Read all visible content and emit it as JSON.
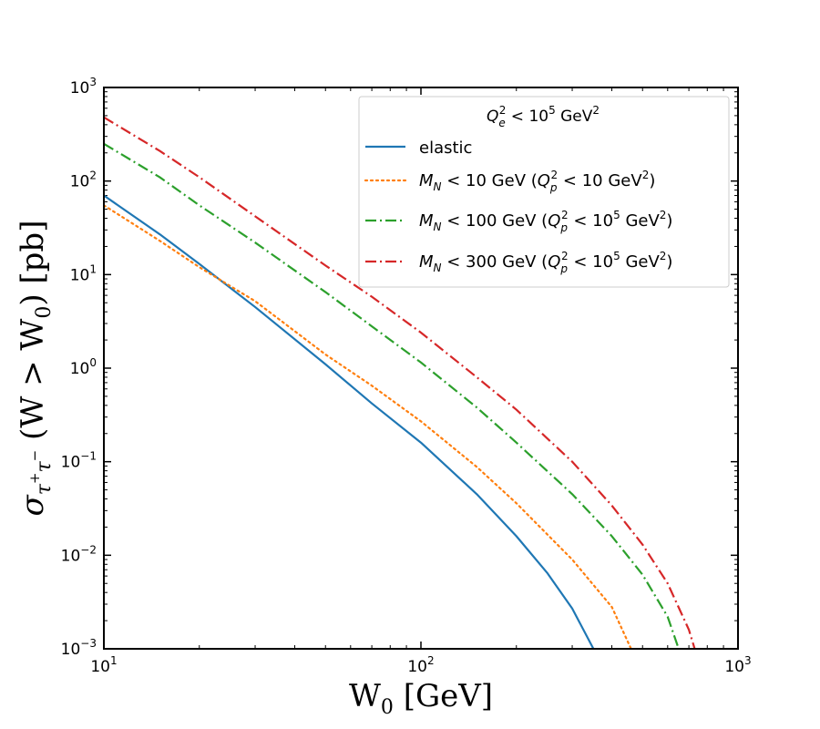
{
  "chart_data": {
    "type": "line",
    "xscale": "log",
    "yscale": "log",
    "xlim": [
      10,
      1000
    ],
    "ylim": [
      0.001,
      1000
    ],
    "xlabel": "W0 [GeV]",
    "ylabel": "σ_{τ+τ−} (W > W0) [pb]",
    "x_ticks": [
      10,
      100,
      1000
    ],
    "x_tick_labels": [
      "10^1",
      "10^2",
      "10^3"
    ],
    "y_ticks": [
      0.001,
      0.01,
      0.1,
      1,
      10,
      100,
      1000
    ],
    "y_tick_labels": [
      "10^-3",
      "10^-2",
      "10^-1",
      "10^0",
      "10^1",
      "10^2",
      "10^3"
    ],
    "grid": false,
    "legend_position": "top-right",
    "legend_title": "Q_e^2 < 10^5 GeV^2",
    "series": [
      {
        "name": "elastic",
        "color": "#1f77b4",
        "style": "solid",
        "x": [
          10,
          15,
          20,
          30,
          50,
          70,
          100,
          150,
          200,
          250,
          300,
          350
        ],
        "y": [
          70,
          27,
          13,
          4.5,
          1.1,
          0.42,
          0.16,
          0.045,
          0.016,
          0.0065,
          0.0027,
          0.001
        ]
      },
      {
        "name": "M_N < 10 GeV (Q_p^2 < 10 GeV^2)",
        "color": "#ff7f0e",
        "style": "dotted",
        "x": [
          10,
          15,
          20,
          30,
          50,
          70,
          100,
          150,
          200,
          300,
          400,
          460
        ],
        "y": [
          55,
          23,
          12,
          5.2,
          1.4,
          0.65,
          0.27,
          0.088,
          0.036,
          0.009,
          0.0028,
          0.001
        ]
      },
      {
        "name": "M_N < 100 GeV (Q_p^2 < 10^5 GeV^2)",
        "color": "#2ca02c",
        "style": "dashdot",
        "x": [
          10,
          15,
          20,
          30,
          50,
          70,
          100,
          150,
          200,
          300,
          400,
          500,
          600,
          650
        ],
        "y": [
          250,
          110,
          55,
          22,
          6.5,
          2.8,
          1.15,
          0.38,
          0.16,
          0.045,
          0.016,
          0.0062,
          0.0022,
          0.001
        ]
      },
      {
        "name": "M_N < 300 GeV (Q_p^2 < 10^5 GeV^2)",
        "color": "#d62728",
        "style": "dashdot",
        "x": [
          10,
          15,
          20,
          30,
          50,
          70,
          100,
          150,
          200,
          300,
          400,
          500,
          600,
          700,
          730
        ],
        "y": [
          480,
          210,
          110,
          42,
          12.5,
          5.8,
          2.4,
          0.8,
          0.36,
          0.1,
          0.034,
          0.013,
          0.005,
          0.0016,
          0.001
        ]
      }
    ]
  }
}
